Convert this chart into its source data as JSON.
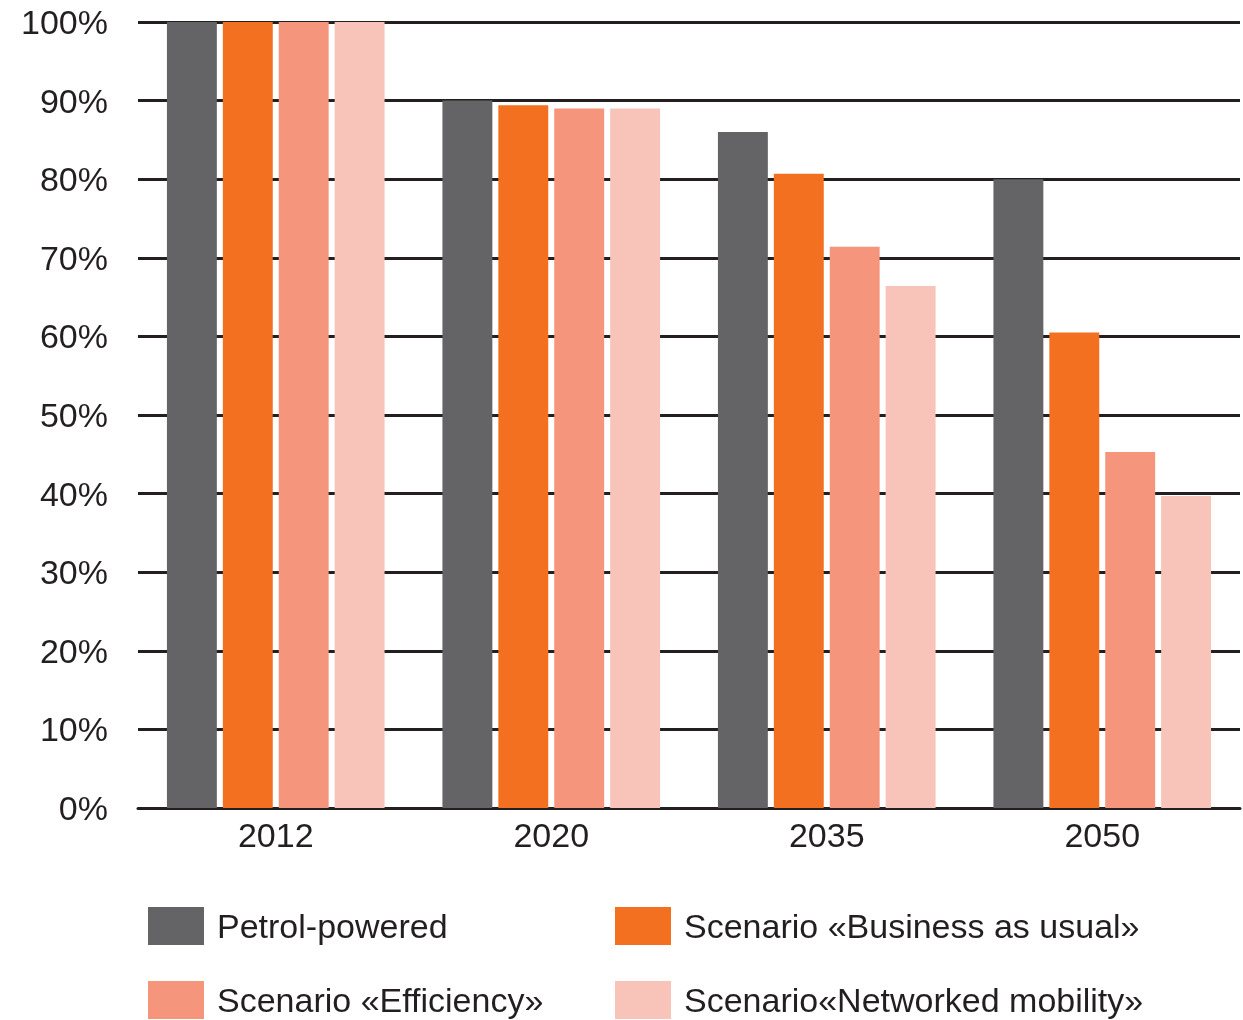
{
  "chart_data": {
    "type": "bar",
    "categories": [
      "2012",
      "2020",
      "2035",
      "2050"
    ],
    "series": [
      {
        "name": "Petrol-powered",
        "color": "#646466",
        "values": [
          100,
          90,
          86,
          80
        ]
      },
      {
        "name": "Scenario «Business as usual»",
        "color": "#f37021",
        "values": [
          100,
          89.4,
          80.7,
          60.5
        ]
      },
      {
        "name": "Scenario «Efficiency»",
        "color": "#f4957c",
        "values": [
          100,
          89,
          71.4,
          45.3
        ]
      },
      {
        "name": "Scenario«Networked mobility»",
        "color": "#f8c3b8",
        "values": [
          100,
          89,
          66.4,
          39.7
        ]
      }
    ],
    "ylim": [
      0,
      100
    ],
    "yticks": [
      {
        "value": 0,
        "label": "0%"
      },
      {
        "value": 10,
        "label": "10%"
      },
      {
        "value": 20,
        "label": "20%"
      },
      {
        "value": 30,
        "label": "30%"
      },
      {
        "value": 40,
        "label": "40%"
      },
      {
        "value": 50,
        "label": "50%"
      },
      {
        "value": 60,
        "label": "60%"
      },
      {
        "value": 70,
        "label": "70%"
      },
      {
        "value": 80,
        "label": "80%"
      },
      {
        "value": 90,
        "label": "90%"
      },
      {
        "value": 100,
        "label": "100%"
      }
    ],
    "grid": "y",
    "legend": "bottom"
  }
}
